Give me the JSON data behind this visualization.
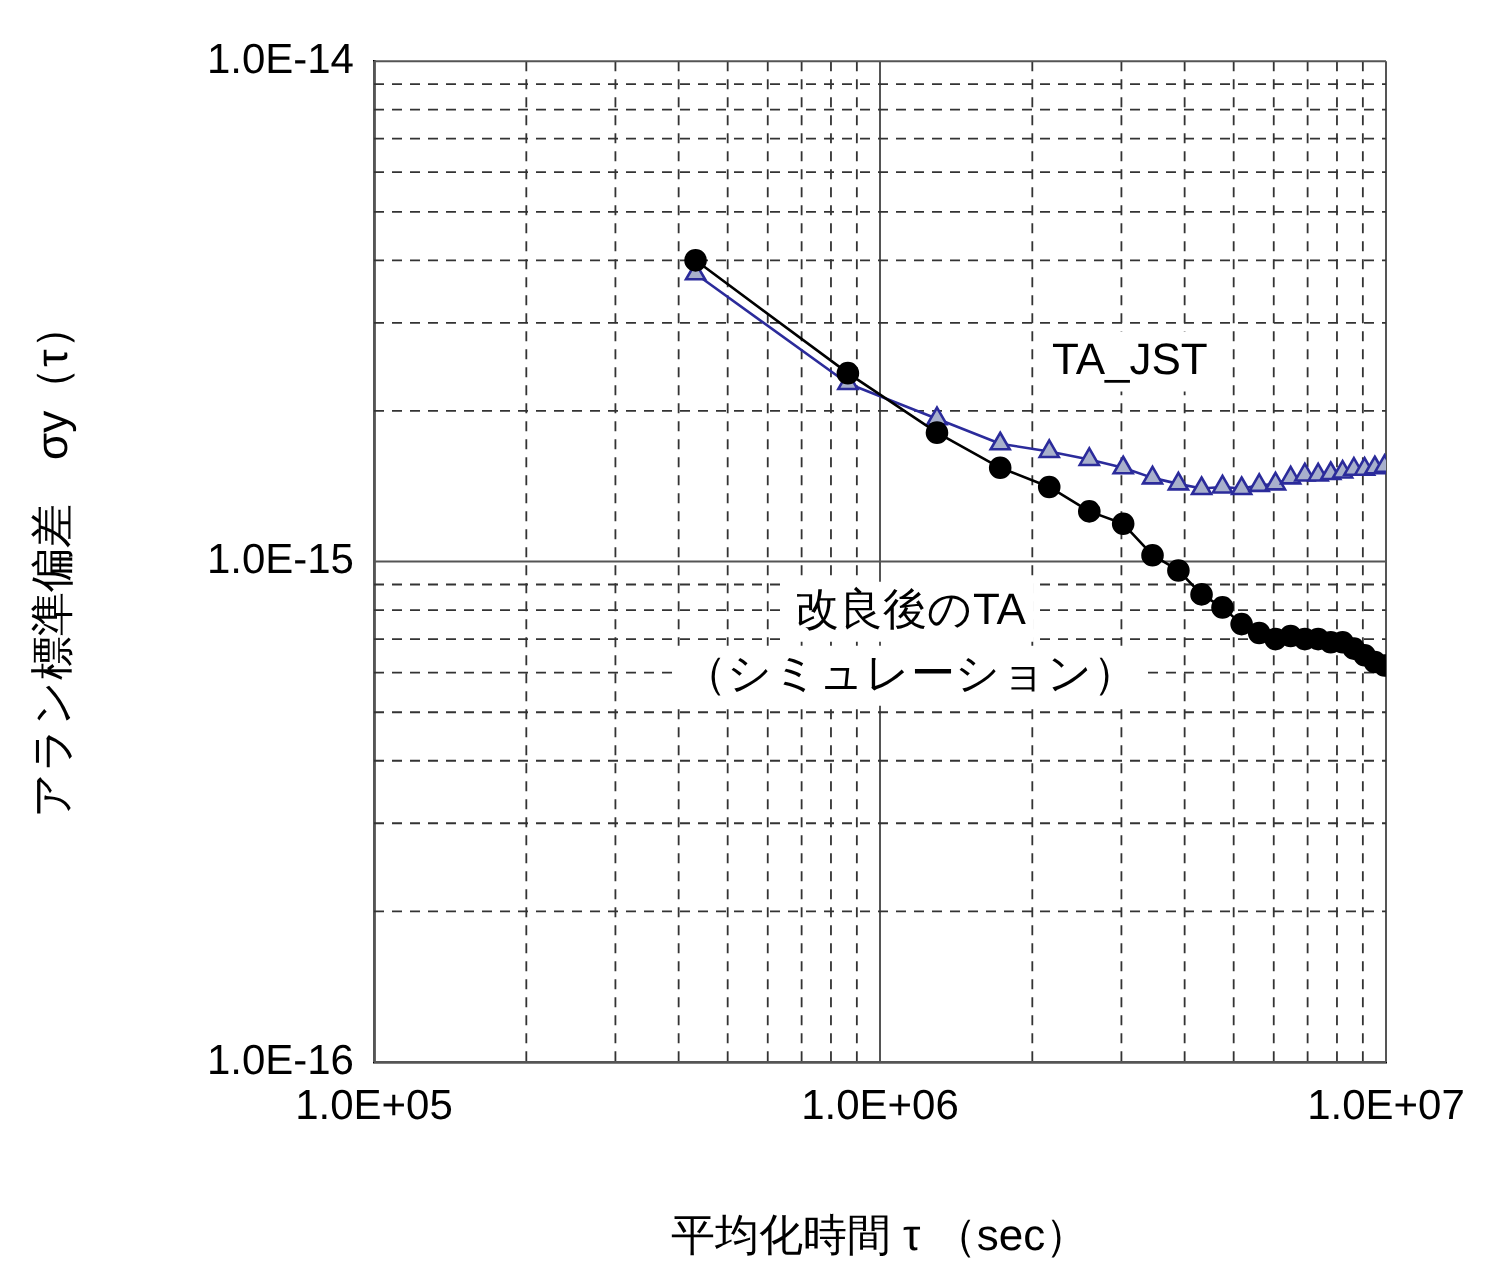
{
  "chart_data": {
    "type": "line",
    "xlabel": "平均化時間 τ （sec）",
    "ylabel": "アラン標準偏差　σy（τ）",
    "x": [
      432000,
      864000,
      1296000,
      1728000,
      2160000,
      2592000,
      3024000,
      3456000,
      3888000,
      4320000,
      4752000,
      5184000,
      5616000,
      6048000,
      6480000,
      6912000,
      7344000,
      7776000,
      8208000,
      8640000,
      9072000,
      9504000,
      9936000
    ],
    "series": [
      {
        "name": "改良後のTA\n（シミュレーション）",
        "color": "#000000",
        "marker": "circle",
        "values": [
          4e-15,
          2.38e-15,
          1.81e-15,
          1.54e-15,
          1.41e-15,
          1.26e-15,
          1.19e-15,
          1.03e-15,
          9.6e-16,
          8.6e-16,
          8.1e-16,
          7.5e-16,
          7.2e-16,
          7e-16,
          7.1e-16,
          7e-16,
          7e-16,
          6.9e-16,
          6.9e-16,
          6.7e-16,
          6.5e-16,
          6.3e-16,
          6.2e-16
        ]
      },
      {
        "name": "TA_JST",
        "color": "#2b2b9b",
        "marker": "triangle",
        "values": [
          3.76e-15,
          2.27e-15,
          1.93e-15,
          1.72e-15,
          1.66e-15,
          1.6e-15,
          1.54e-15,
          1.47e-15,
          1.43e-15,
          1.4e-15,
          1.41e-15,
          1.4e-15,
          1.42e-15,
          1.43e-15,
          1.47e-15,
          1.49e-15,
          1.49e-15,
          1.5e-15,
          1.51e-15,
          1.53e-15,
          1.53e-15,
          1.54e-15,
          1.55e-15
        ]
      }
    ],
    "log": "xy",
    "grid": true,
    "legend": false,
    "line_style": "solid",
    "xlim": [
      100000,
      10000000
    ],
    "ylim": [
      1e-16,
      1e-14
    ],
    "xticks": [
      {
        "value": 100000,
        "label": "1.0E+05"
      },
      {
        "value": 1000000,
        "label": "1.0E+06"
      },
      {
        "value": 10000000,
        "label": "1.0E+07"
      }
    ],
    "yticks": [
      {
        "value": 1e-16,
        "label": "1.0E-16"
      },
      {
        "value": 1e-15,
        "label": "1.0E-15"
      },
      {
        "value": 1e-14,
        "label": "1.0E-14"
      }
    ]
  }
}
